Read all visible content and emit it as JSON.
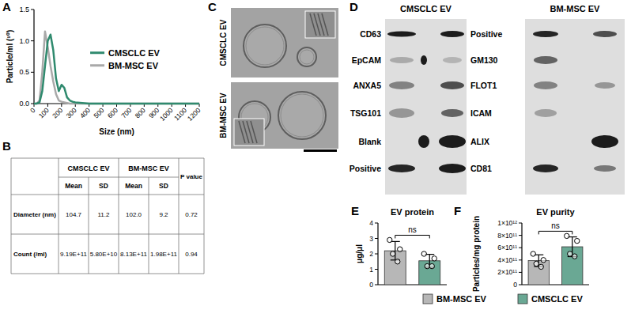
{
  "panel_labels": [
    "A",
    "B",
    "C",
    "D",
    "E",
    "F"
  ],
  "chart_data": [
    {
      "type": "line",
      "x_label": "Size (nm)",
      "y_label": "Particle/ml (¹⁰)",
      "x": [
        0,
        20,
        40,
        60,
        80,
        100,
        120,
        140,
        160,
        180,
        200,
        220,
        240,
        260,
        280,
        300,
        350,
        400,
        500,
        600,
        800,
        1000,
        1200
      ],
      "series": [
        {
          "name": "CMSCLC EV",
          "color": "#2f8a6e",
          "values": [
            0,
            0,
            0.02,
            0.2,
            0.6,
            1.0,
            1.1,
            0.85,
            0.4,
            0.2,
            0.3,
            0.25,
            0.1,
            0.05,
            0.03,
            0.02,
            0.01,
            0,
            0,
            0,
            0,
            0,
            0
          ]
        },
        {
          "name": "BM-MSC EV",
          "color": "#a9a9a9",
          "values": [
            0,
            0,
            0.05,
            0.5,
            1.15,
            0.9,
            0.6,
            0.35,
            0.15,
            0.05,
            0.03,
            0.02,
            0.01,
            0,
            0,
            0,
            0,
            0,
            0,
            0,
            0,
            0,
            0
          ]
        }
      ],
      "xlim": [
        0,
        1200
      ],
      "ylim": [
        0,
        1.5
      ],
      "xticks": [
        0,
        100,
        200,
        300,
        400,
        500,
        600,
        700,
        800,
        900,
        1000,
        1100,
        1200
      ],
      "yticks": [
        {
          "value": 0,
          "label": "0.0"
        },
        {
          "value": 0.5,
          "label": "0.5"
        },
        {
          "value": 1,
          "label": "1.0"
        },
        {
          "value": 1.5,
          "label": "1.5"
        }
      ],
      "legend": "right"
    },
    {
      "type": "bar",
      "title": "EV protein",
      "y_label": "μg/μl",
      "categories": [
        "BM-MSC EV",
        "CMSCLC EV"
      ],
      "values": [
        2.2,
        1.55
      ],
      "errors": [
        0.6,
        0.42
      ],
      "points": [
        [
          2.9,
          2.3,
          2.0,
          1.5
        ],
        [
          2.0,
          1.7,
          1.2,
          1.2
        ]
      ],
      "colors": [
        "#b7b7b7",
        "#6aa894"
      ],
      "ylim": [
        0,
        4
      ],
      "yticks": [
        0,
        1,
        2,
        3,
        4
      ],
      "significance": "ns",
      "tick_labels": "y",
      "legend": "bottom"
    },
    {
      "type": "bar",
      "title": "EV purity",
      "y_label": "Particles/mg protein",
      "categories": [
        "BM-MSC EV",
        "CMSCLC EV"
      ],
      "values": [
        390000000000,
        615000000000
      ],
      "errors": [
        95000000000,
        160000000000
      ],
      "points": [
        [
          500000000000,
          400000000000,
          340000000000,
          290000000000
        ],
        [
          790000000000,
          710000000000,
          500000000000,
          460000000000
        ]
      ],
      "colors": [
        "#b7b7b7",
        "#6aa894"
      ],
      "ylim": [
        0,
        1000000000000
      ],
      "yticks": [
        0,
        {
          "value": 200000000000,
          "label": "2×10¹¹"
        },
        {
          "value": 400000000000,
          "label": "4×10¹¹"
        },
        {
          "value": 600000000000,
          "label": "6×10¹¹"
        },
        {
          "value": 800000000000,
          "label": "8×10¹¹"
        },
        {
          "value": 1000000000000,
          "label": "1×10¹²"
        }
      ],
      "significance": "ns",
      "tick_labels": "y"
    }
  ],
  "table": {
    "groups": [
      "CMSCLC EV",
      "BM-MSC EV"
    ],
    "p_header": "P value",
    "subheaders": [
      "Mean",
      "SD",
      "Mean",
      "SD"
    ],
    "rows": [
      [
        "Diameter (nm)",
        "104.7",
        "11.2",
        "102.0",
        "9.2",
        "0.72"
      ],
      [
        "Count (/ml)",
        "9.19E+11",
        "5.80E+10",
        "8.13E+11",
        "1.98E+11",
        "0.94"
      ]
    ]
  },
  "images": {
    "labels": [
      "CMSCLC EV",
      "BM-MSC EV"
    ]
  },
  "blot": {
    "membranes": [
      "CMSCLC EV",
      "BM-MSC EV"
    ],
    "left_labels": [
      "CD63",
      "EpCAM",
      "ANXA5",
      "TSG101",
      "Blank",
      "Positive"
    ],
    "right_labels": [
      "Positive",
      "GM130",
      "FLOT1",
      "ICAM",
      "ALIX",
      "CD81"
    ]
  }
}
